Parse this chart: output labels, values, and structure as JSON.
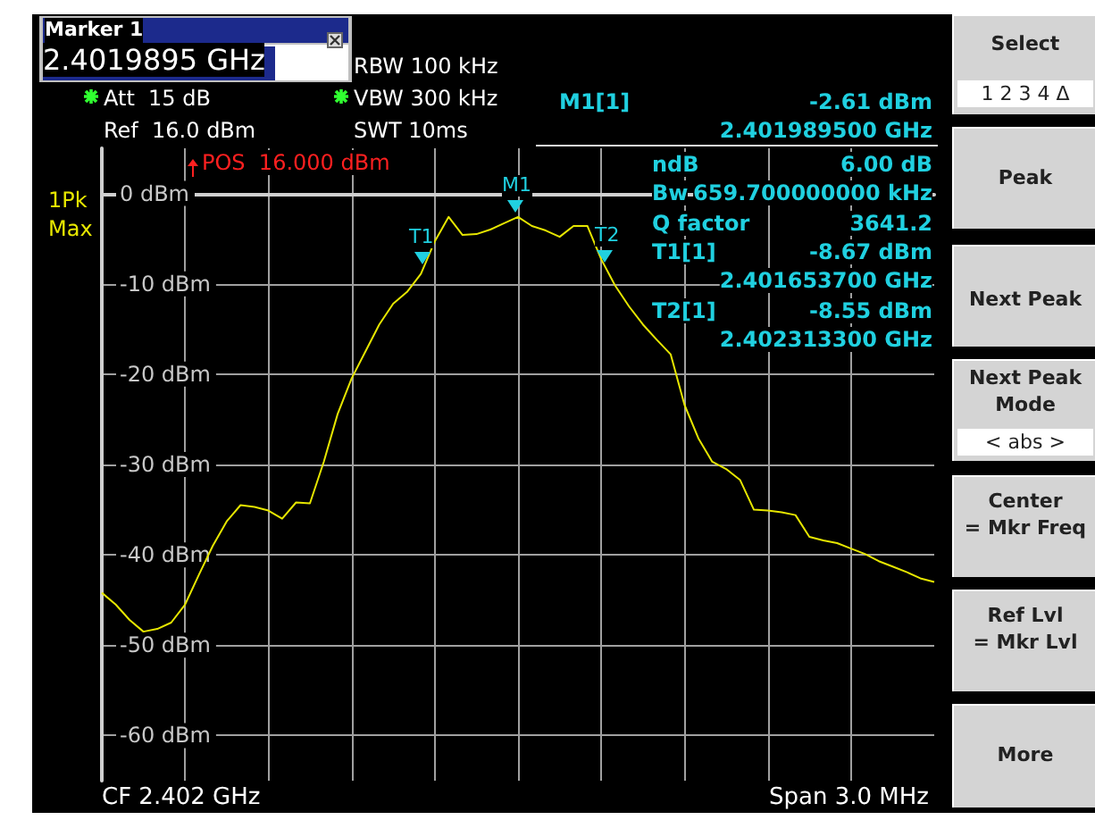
{
  "chart_data": {
    "type": "line",
    "color": "#e6e600",
    "categories": [
      null,
      null,
      null,
      null,
      null,
      null,
      null,
      null,
      null,
      null,
      null,
      null,
      null,
      null,
      null,
      null,
      null,
      null,
      null,
      null,
      null,
      null,
      null,
      null,
      null,
      null,
      null,
      null,
      null,
      null,
      null,
      null,
      null,
      null,
      null,
      null,
      null,
      null,
      null,
      null,
      null,
      null,
      null,
      null,
      null,
      null,
      null,
      null,
      null,
      null,
      null,
      null,
      null,
      null,
      null,
      null,
      null,
      null,
      null,
      null,
      null
    ],
    "values": [
      -44.2,
      -45.5,
      -47.2,
      -48.5,
      -48.2,
      -47.5,
      -45.5,
      -42.2,
      -39.0,
      -36.3,
      -34.5,
      -34.7,
      -35.1,
      -36.0,
      -34.2,
      -34.3,
      -29.7,
      -24.4,
      -20.5,
      -17.5,
      -14.5,
      -12.2,
      -10.9,
      -8.9,
      -5.3,
      -2.6,
      -4.6,
      -4.5,
      -4.0,
      -3.3,
      -2.6,
      -3.6,
      -4.1,
      -4.8,
      -3.6,
      -3.6,
      -7.3,
      -10.2,
      -12.5,
      -14.5,
      -16.2,
      -17.8,
      -23.4,
      -27.1,
      -29.7,
      -30.5,
      -31.7,
      -35.0,
      -35.1,
      -35.3,
      -35.6,
      -38.0,
      -38.4,
      -38.7,
      -39.3,
      -39.9,
      -40.7,
      -41.3,
      -41.9,
      -42.6,
      -43.0
    ],
    "ylim": [
      -65,
      5
    ],
    "yticks": [
      {
        "value": 0,
        "label": "0 dBm"
      },
      {
        "value": -10,
        "label": "-10 dBm"
      },
      {
        "value": -20,
        "label": "-20 dBm"
      },
      {
        "value": -30,
        "label": "-30 dBm"
      },
      {
        "value": -40,
        "label": "-40 dBm"
      },
      {
        "value": -50,
        "label": "-50 dBm"
      },
      {
        "value": -60,
        "label": "-60 dBm"
      }
    ],
    "grid": true,
    "annotations": [
      "Marker 1",
      "2.4019895 GHz",
      "RBW 100 kHz",
      "Att  15 dB",
      "VBW 300 kHz",
      "Ref  16.0 dBm",
      "SWT 10ms",
      "1Pk",
      "Max",
      "POS  16.000 dBm",
      "M1[1]",
      "-2.61 dBm",
      "2.401989500 GHz",
      "ndB",
      "6.00 dB",
      "Bw",
      "659.700000000 kHz",
      "Q factor",
      "3641.2",
      "T1[1]",
      "-8.67 dBm",
      "2.401653700 GHz",
      "T2[1]",
      "-8.55 dBm",
      "2.402313300 GHz",
      "CF 2.402 GHz",
      "Span 3.0 MHz",
      "Select",
      "1 2 3 4 Δ",
      "Peak",
      "Next Peak",
      "Next Peak\nMode",
      "< abs >",
      "Center\n= Mkr Freq",
      "Ref Lvl\n= Mkr Lvl",
      "More",
      "M1",
      "T1",
      "T2"
    ]
  }
}
